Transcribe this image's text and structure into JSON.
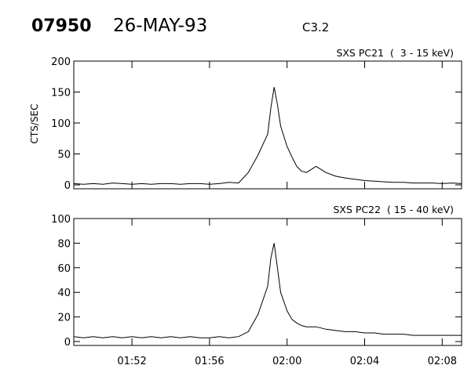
{
  "header": {
    "event_id": "07950",
    "date": "26-MAY-93",
    "flare_class": "C3.2"
  },
  "chart_data": [
    {
      "type": "line",
      "title": "SXS PC21  (  3 - 15 keV)",
      "ylabel": "CTS/SEC",
      "xlim": [
        "01:49",
        "02:09"
      ],
      "ylim": [
        0,
        200
      ],
      "yticks": [
        0,
        50,
        100,
        150,
        200
      ],
      "xticks": [
        "01:52",
        "01:56",
        "02:00",
        "02:04",
        "02:08"
      ],
      "show_xtick_labels": false,
      "series": [
        {
          "x": [
            "01:49:00",
            "01:49:30",
            "01:50:00",
            "01:50:30",
            "01:51:00",
            "01:51:30",
            "01:52:00",
            "01:52:30",
            "01:53:00",
            "01:53:30",
            "01:54:00",
            "01:54:30",
            "01:55:00",
            "01:55:30",
            "01:56:00",
            "01:56:30",
            "01:57:00",
            "01:57:30",
            "01:58:00",
            "01:58:30",
            "01:59:00",
            "01:59:10",
            "01:59:20",
            "01:59:30",
            "01:59:40",
            "02:00:00",
            "02:00:15",
            "02:00:30",
            "02:00:45",
            "02:01:00",
            "02:01:15",
            "02:01:30",
            "02:01:45",
            "02:02:00",
            "02:02:30",
            "02:03:00",
            "02:03:30",
            "02:04:00",
            "02:04:30",
            "02:05:00",
            "02:05:30",
            "02:06:00",
            "02:06:30",
            "02:07:00",
            "02:07:30",
            "02:08:00",
            "02:08:30",
            "02:09:00"
          ],
          "y": [
            2,
            1,
            2,
            1,
            3,
            2,
            1,
            2,
            1,
            2,
            2,
            1,
            2,
            2,
            1,
            2,
            4,
            3,
            20,
            48,
            82,
            125,
            158,
            130,
            95,
            62,
            45,
            30,
            22,
            20,
            25,
            30,
            25,
            20,
            14,
            11,
            9,
            7,
            6,
            5,
            4,
            4,
            3,
            3,
            3,
            2,
            3,
            2
          ]
        }
      ]
    },
    {
      "type": "line",
      "title": "SXS PC22  ( 15 - 40 keV)",
      "ylabel": "",
      "xlim": [
        "01:49",
        "02:09"
      ],
      "ylim": [
        0,
        100
      ],
      "yticks": [
        0,
        20,
        40,
        60,
        80,
        100
      ],
      "xticks": [
        "01:52",
        "01:56",
        "02:00",
        "02:04",
        "02:08"
      ],
      "show_xtick_labels": true,
      "series": [
        {
          "x": [
            "01:49:00",
            "01:49:30",
            "01:50:00",
            "01:50:30",
            "01:51:00",
            "01:51:30",
            "01:52:00",
            "01:52:30",
            "01:53:00",
            "01:53:30",
            "01:54:00",
            "01:54:30",
            "01:55:00",
            "01:55:30",
            "01:56:00",
            "01:56:30",
            "01:57:00",
            "01:57:30",
            "01:58:00",
            "01:58:30",
            "01:59:00",
            "01:59:10",
            "01:59:20",
            "01:59:30",
            "01:59:40",
            "02:00:00",
            "02:00:15",
            "02:00:30",
            "02:00:45",
            "02:01:00",
            "02:01:15",
            "02:01:30",
            "02:01:45",
            "02:02:00",
            "02:02:30",
            "02:03:00",
            "02:03:30",
            "02:04:00",
            "02:04:30",
            "02:05:00",
            "02:05:30",
            "02:06:00",
            "02:06:30",
            "02:07:00",
            "02:07:30",
            "02:08:00",
            "02:08:30",
            "02:09:00"
          ],
          "y": [
            4,
            3,
            4,
            3,
            4,
            3,
            4,
            3,
            4,
            3,
            4,
            3,
            4,
            3,
            3,
            4,
            3,
            4,
            8,
            22,
            45,
            68,
            80,
            60,
            40,
            25,
            18,
            15,
            13,
            12,
            12,
            12,
            11,
            10,
            9,
            8,
            8,
            7,
            7,
            6,
            6,
            6,
            5,
            5,
            5,
            5,
            5,
            5
          ]
        }
      ]
    }
  ]
}
